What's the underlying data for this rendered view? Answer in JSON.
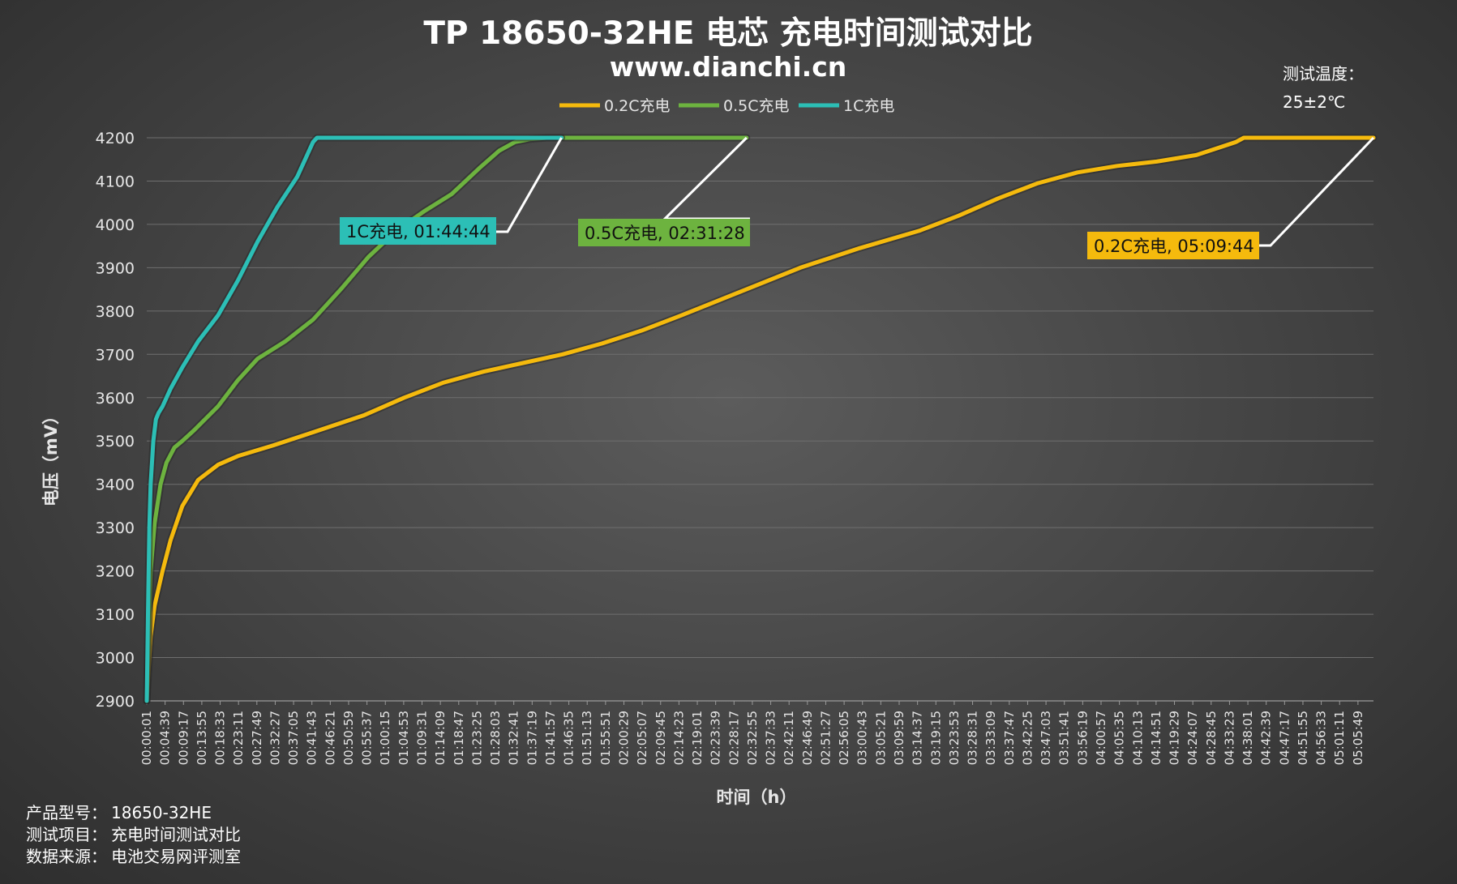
{
  "title": "TP 18650-32HE 电芯 充电时间测试对比",
  "subtitle": "www.dianchi.cn",
  "temperature_note": [
    "测试温度：",
    "25±2℃"
  ],
  "footer": [
    {
      "label": "产品型号：",
      "value": "18650-32HE"
    },
    {
      "label": "测试项目：",
      "value": "充电时间测试对比"
    },
    {
      "label": "数据来源：",
      "value": "电池交易网评测室"
    }
  ],
  "colors": {
    "c02": "#F5BA0D",
    "c05": "#6DB33F",
    "c1": "#2CBFB6"
  },
  "chart_data": {
    "type": "line",
    "xlabel": "时间（h）",
    "ylabel": "电压（mV）",
    "ylim": [
      2900,
      4200
    ],
    "yticks": [
      2900,
      3000,
      3100,
      3200,
      3300,
      3400,
      3500,
      3600,
      3700,
      3800,
      3900,
      4000,
      4100,
      4200
    ],
    "xlim": [
      "00:00:01",
      "05:09:44"
    ],
    "xticks": [
      "00:00:01",
      "00:04:39",
      "00:09:17",
      "00:13:55",
      "00:18:33",
      "00:23:11",
      "00:27:49",
      "00:32:27",
      "00:37:05",
      "00:41:43",
      "00:46:21",
      "00:50:59",
      "00:55:37",
      "01:00:15",
      "01:04:53",
      "01:09:31",
      "01:14:09",
      "01:18:47",
      "01:23:25",
      "01:28:03",
      "01:32:41",
      "01:37:19",
      "01:41:57",
      "01:46:35",
      "01:51:13",
      "01:55:51",
      "02:00:29",
      "02:05:07",
      "02:09:45",
      "02:14:23",
      "02:19:01",
      "02:23:39",
      "02:28:17",
      "02:32:55",
      "02:37:33",
      "02:42:11",
      "02:46:49",
      "02:51:27",
      "02:56:05",
      "03:00:43",
      "03:05:21",
      "03:09:59",
      "03:14:37",
      "03:19:15",
      "03:23:53",
      "03:28:31",
      "03:33:09",
      "03:37:47",
      "03:42:25",
      "03:47:03",
      "03:51:41",
      "03:56:19",
      "04:00:57",
      "04:05:35",
      "04:10:13",
      "04:14:51",
      "04:19:29",
      "04:24:07",
      "04:28:45",
      "04:33:23",
      "04:38:01",
      "04:42:39",
      "04:47:17",
      "04:51:55",
      "04:56:33",
      "05:01:11",
      "05:05:49"
    ],
    "grid": true,
    "legend_position": "top",
    "series": [
      {
        "name": "0.2C充电",
        "color": "#F5BA0D",
        "x": [
          "00:00:01",
          "00:01:00",
          "00:02:00",
          "00:04:00",
          "00:06:00",
          "00:09:00",
          "00:13:00",
          "00:18:00",
          "00:23:00",
          "00:32:00",
          "00:42:00",
          "00:55:00",
          "01:05:00",
          "01:15:00",
          "01:25:00",
          "01:35:00",
          "01:45:00",
          "01:55:00",
          "02:05:00",
          "02:15:00",
          "02:30:00",
          "02:45:00",
          "03:00:00",
          "03:15:00",
          "03:25:00",
          "03:35:00",
          "03:45:00",
          "03:55:00",
          "04:05:00",
          "04:15:00",
          "04:25:00",
          "04:30:00",
          "04:35:00",
          "04:37:00",
          "05:09:44"
        ],
        "y": [
          2900,
          3050,
          3120,
          3200,
          3270,
          3350,
          3410,
          3445,
          3465,
          3490,
          3520,
          3560,
          3600,
          3635,
          3660,
          3680,
          3700,
          3725,
          3755,
          3790,
          3845,
          3900,
          3945,
          3985,
          4020,
          4060,
          4095,
          4120,
          4135,
          4145,
          4160,
          4175,
          4190,
          4200,
          4200
        ]
      },
      {
        "name": "0.5C充电",
        "color": "#6DB33F",
        "x": [
          "00:00:01",
          "00:00:30",
          "00:01:00",
          "00:02:00",
          "00:03:30",
          "00:05:00",
          "00:07:00",
          "00:09:00",
          "00:12:00",
          "00:18:00",
          "00:23:00",
          "00:28:00",
          "00:35:00",
          "00:42:00",
          "00:49:00",
          "00:56:00",
          "01:03:00",
          "01:10:00",
          "01:17:00",
          "01:24:00",
          "01:29:00",
          "01:33:00",
          "01:37:00",
          "01:41:00",
          "01:45:00",
          "01:46:00",
          "02:31:28"
        ],
        "y": [
          2900,
          3050,
          3200,
          3310,
          3400,
          3450,
          3485,
          3500,
          3525,
          3580,
          3640,
          3690,
          3730,
          3780,
          3850,
          3925,
          3985,
          4030,
          4070,
          4130,
          4170,
          4190,
          4197,
          4200,
          4200,
          4200,
          4200
        ]
      },
      {
        "name": "1C充电",
        "color": "#2CBFB6",
        "x": [
          "00:00:01",
          "00:00:20",
          "00:00:40",
          "00:01:00",
          "00:01:40",
          "00:02:20",
          "00:03:00",
          "00:04:00",
          "00:06:00",
          "00:09:00",
          "00:13:00",
          "00:18:00",
          "00:23:00",
          "00:28:00",
          "00:33:00",
          "00:38:00",
          "00:42:00",
          "00:43:00",
          "01:44:44"
        ],
        "y": [
          2900,
          3100,
          3300,
          3400,
          3500,
          3550,
          3565,
          3580,
          3620,
          3670,
          3730,
          3790,
          3870,
          3960,
          4040,
          4110,
          4190,
          4200,
          4200
        ]
      }
    ],
    "annotations": [
      {
        "text": "1C充电, 01:44:44",
        "series": "1C充电"
      },
      {
        "text": "0.5C充电, 02:31:28",
        "series": "0.5C充电"
      },
      {
        "text": "0.2C充电, 05:09:44",
        "series": "0.2C充电"
      }
    ]
  }
}
